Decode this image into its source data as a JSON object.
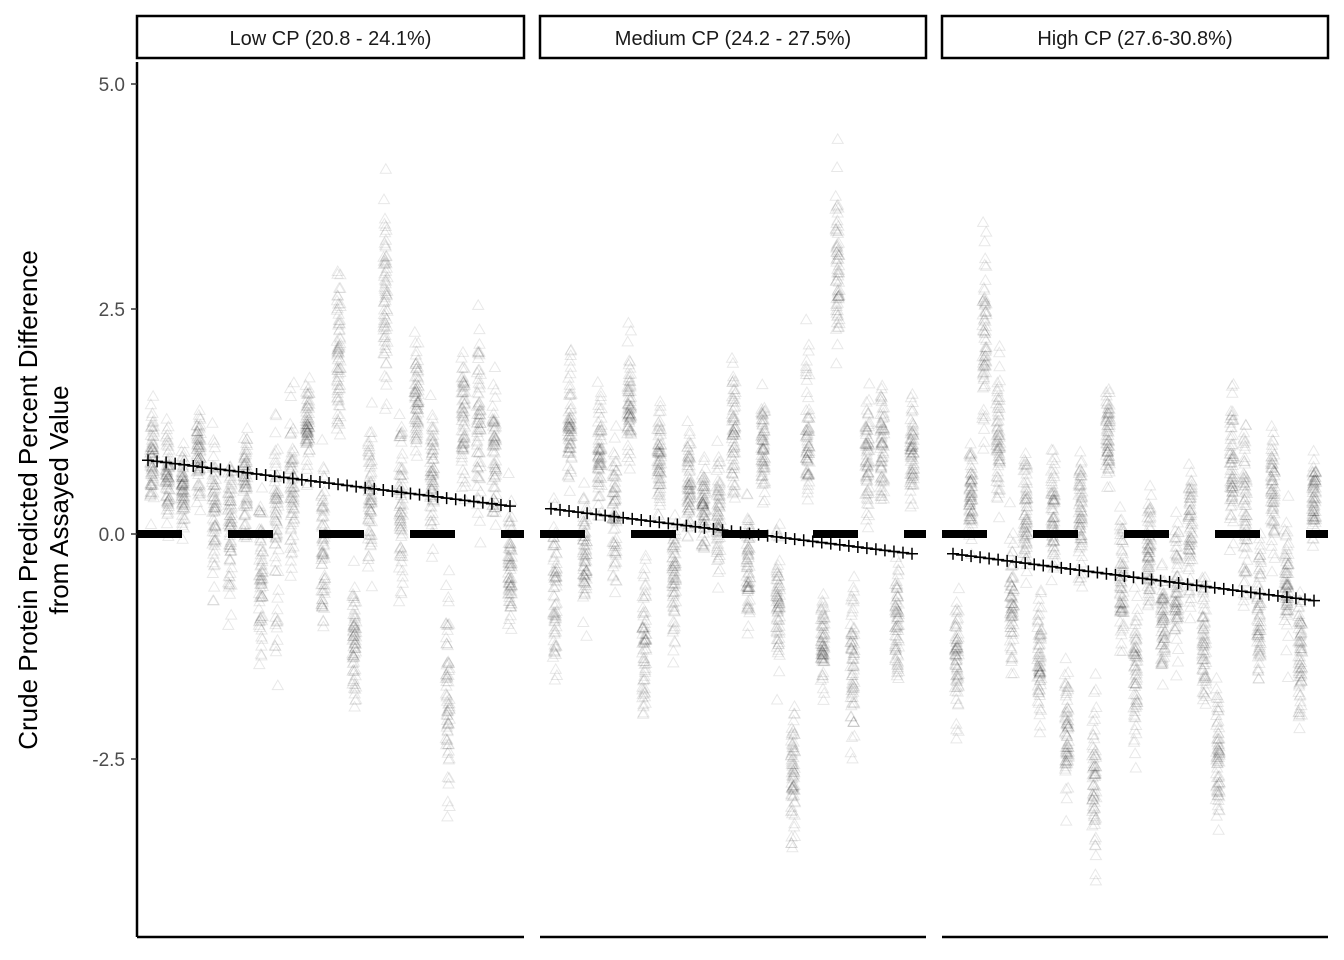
{
  "chart_data": {
    "type": "scatter",
    "ylabel_lines": [
      "Crude Protein Predicted Percent Difference",
      "from Assayed Value"
    ],
    "xlabel": "",
    "ylim": [
      -4.4,
      5.3
    ],
    "y_ticks": [
      5.0,
      2.5,
      0.0,
      -2.5
    ],
    "y_tick_labels": [
      "5.0",
      "2.5",
      "0.0",
      "-2.5"
    ],
    "reference_line": {
      "y": 0.0,
      "style": "dashed"
    },
    "marker": "open-triangle",
    "trend_marker": "plus",
    "grid": false,
    "panels": [
      {
        "label": "Low CP (20.8 - 24.1%)",
        "samples": [
          {
            "mid": 0.8,
            "spread": 0.9
          },
          {
            "mid": 0.6,
            "spread": 1.0
          },
          {
            "mid": 0.5,
            "spread": 0.9
          },
          {
            "mid": 0.9,
            "spread": 0.8
          },
          {
            "mid": 0.3,
            "spread": 1.3
          },
          {
            "mid": 0.1,
            "spread": 1.5
          },
          {
            "mid": 0.6,
            "spread": 1.0
          },
          {
            "mid": -0.4,
            "spread": 1.8
          },
          {
            "mid": 0.0,
            "spread": 2.2
          },
          {
            "mid": 0.5,
            "spread": 1.4
          },
          {
            "mid": 1.2,
            "spread": 0.9
          },
          {
            "mid": 0.0,
            "spread": 1.5
          },
          {
            "mid": 2.0,
            "spread": 1.6
          },
          {
            "mid": -1.3,
            "spread": 1.4
          },
          {
            "mid": 0.4,
            "spread": 1.3
          },
          {
            "mid": 2.5,
            "spread": 1.9
          },
          {
            "mid": 0.4,
            "spread": 1.6
          },
          {
            "mid": 1.5,
            "spread": 1.3
          },
          {
            "mid": 0.7,
            "spread": 1.3
          },
          {
            "mid": -1.8,
            "spread": 2.1
          },
          {
            "mid": 1.3,
            "spread": 1.4
          },
          {
            "mid": 1.2,
            "spread": 1.7
          },
          {
            "mid": 0.9,
            "spread": 1.3
          },
          {
            "mid": -0.4,
            "spread": 1.3
          }
        ],
        "trend": [
          0.82,
          0.31
        ]
      },
      {
        "label": "Medium CP (24.2 - 27.5%)",
        "samples": [
          {
            "mid": -0.6,
            "spread": 1.6
          },
          {
            "mid": 1.2,
            "spread": 1.3
          },
          {
            "mid": -0.2,
            "spread": 1.4
          },
          {
            "mid": 0.9,
            "spread": 1.1
          },
          {
            "mid": 0.2,
            "spread": 1.4
          },
          {
            "mid": 1.4,
            "spread": 1.1
          },
          {
            "mid": -1.2,
            "spread": 1.5
          },
          {
            "mid": 0.9,
            "spread": 1.0
          },
          {
            "mid": -0.5,
            "spread": 1.2
          },
          {
            "mid": 0.6,
            "spread": 1.0
          },
          {
            "mid": 0.3,
            "spread": 0.9
          },
          {
            "mid": 0.2,
            "spread": 1.2
          },
          {
            "mid": 1.1,
            "spread": 1.2
          },
          {
            "mid": -0.3,
            "spread": 1.3
          },
          {
            "mid": 1.0,
            "spread": 1.1
          },
          {
            "mid": -0.8,
            "spread": 1.3
          },
          {
            "mid": -2.6,
            "spread": 1.3
          },
          {
            "mid": 1.2,
            "spread": 1.4
          },
          {
            "mid": -1.2,
            "spread": 0.9
          },
          {
            "mid": 2.8,
            "spread": 1.8
          },
          {
            "mid": -1.4,
            "spread": 1.5
          },
          {
            "mid": 0.8,
            "spread": 1.3
          },
          {
            "mid": 1.0,
            "spread": 1.1
          },
          {
            "mid": -1.0,
            "spread": 1.4
          },
          {
            "mid": 0.9,
            "spread": 1.0
          }
        ],
        "trend": [
          0.28,
          -0.22
        ]
      },
      {
        "label": "High CP (27.6-30.8%)",
        "samples": [
          {
            "mid": -1.4,
            "spread": 1.2
          },
          {
            "mid": 0.5,
            "spread": 1.1
          },
          {
            "mid": 2.2,
            "spread": 1.8
          },
          {
            "mid": 1.1,
            "spread": 1.3
          },
          {
            "mid": -0.8,
            "spread": 1.4
          },
          {
            "mid": 0.3,
            "spread": 1.2
          },
          {
            "mid": -1.4,
            "spread": 1.3
          },
          {
            "mid": 0.3,
            "spread": 1.2
          },
          {
            "mid": -2.2,
            "spread": 1.3
          },
          {
            "mid": 0.2,
            "spread": 1.2
          },
          {
            "mid": -2.8,
            "spread": 1.6
          },
          {
            "mid": 1.1,
            "spread": 0.9
          },
          {
            "mid": -0.5,
            "spread": 1.3
          },
          {
            "mid": -1.5,
            "spread": 1.5
          },
          {
            "mid": -0.2,
            "spread": 1.3
          },
          {
            "mid": -1.0,
            "spread": 1.0
          },
          {
            "mid": -0.6,
            "spread": 1.4
          },
          {
            "mid": 0.0,
            "spread": 1.3
          },
          {
            "mid": -1.2,
            "spread": 1.3
          },
          {
            "mid": -2.4,
            "spread": 1.4
          },
          {
            "mid": 0.8,
            "spread": 1.3
          },
          {
            "mid": 0.3,
            "spread": 1.6
          },
          {
            "mid": -0.8,
            "spread": 1.4
          },
          {
            "mid": 0.5,
            "spread": 1.1
          },
          {
            "mid": -0.6,
            "spread": 1.3
          },
          {
            "mid": -1.4,
            "spread": 1.2
          },
          {
            "mid": 0.4,
            "spread": 1.1
          }
        ],
        "trend": [
          -0.22,
          -0.74
        ]
      }
    ]
  }
}
